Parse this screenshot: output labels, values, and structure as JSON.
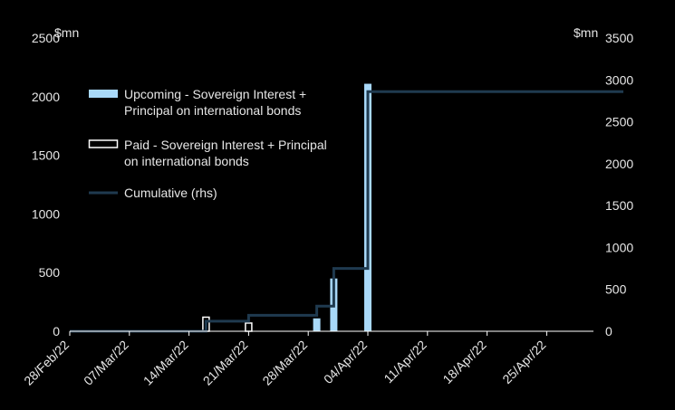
{
  "chart_data": {
    "type": "bar",
    "title": "",
    "left_axis": {
      "unit_label": "$mn",
      "ylim": [
        0,
        2500
      ],
      "ticks": [
        "0",
        "500",
        "1000",
        "1500",
        "2000",
        "2500"
      ]
    },
    "right_axis": {
      "unit_label": "$mn",
      "ylim": [
        0,
        3500
      ],
      "ticks": [
        "0",
        "500",
        "1000",
        "1500",
        "2000",
        "2500",
        "3000",
        "3500"
      ]
    },
    "x_ticks": [
      "28/Feb/22",
      "07/Mar/22",
      "14/Mar/22",
      "21/Mar/22",
      "28/Mar/22",
      "04/Apr/22",
      "11/Apr/22",
      "18/Apr/22",
      "25/Apr/22"
    ],
    "xlim": [
      "2022-02-28",
      "2022-05-04"
    ],
    "grid": false,
    "legend_position": "top-left",
    "colors": {
      "upcoming": "#a8d8f8",
      "paid": "#ffffff",
      "cumulative": "#1f3a4f",
      "text": "#e6e6e6"
    },
    "series": [
      {
        "name": "Upcoming - Sovereign Interest + Principal on international bonds",
        "legend_lines": [
          "Upcoming - Sovereign Interest +",
          "Principal on international bonds"
        ],
        "axis": "left",
        "kind": "bar",
        "points": [
          {
            "date": "2022-03-29",
            "value": 110
          },
          {
            "date": "2022-03-31",
            "value": 450
          },
          {
            "date": "2022-04-04",
            "value": 2110
          }
        ]
      },
      {
        "name": "Paid - Sovereign Interest + Principal on international bonds",
        "legend_lines": [
          "Paid - Sovereign Interest + Principal",
          "on international bonds"
        ],
        "axis": "left",
        "kind": "bar-outline",
        "points": [
          {
            "date": "2022-03-16",
            "value": 120
          },
          {
            "date": "2022-03-21",
            "value": 70
          }
        ]
      },
      {
        "name": "Cumulative (rhs)",
        "legend_lines": [
          "Cumulative (rhs)"
        ],
        "axis": "right",
        "kind": "step-line",
        "points": [
          {
            "date": "2022-02-28",
            "value": 0
          },
          {
            "date": "2022-03-16",
            "value": 120
          },
          {
            "date": "2022-03-21",
            "value": 190
          },
          {
            "date": "2022-03-29",
            "value": 300
          },
          {
            "date": "2022-03-31",
            "value": 750
          },
          {
            "date": "2022-04-04",
            "value": 2860
          },
          {
            "date": "2022-05-04",
            "value": 2860
          }
        ]
      }
    ]
  }
}
